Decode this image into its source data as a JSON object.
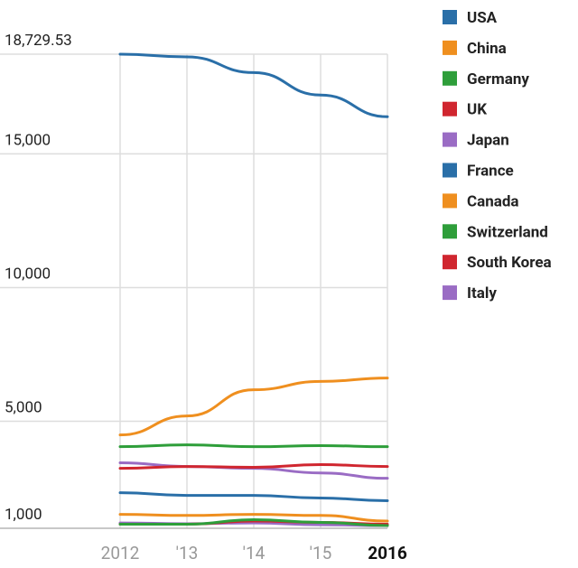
{
  "chart_data": {
    "type": "line",
    "categories": [
      "2012",
      "'13",
      "'14",
      "'15",
      "2016"
    ],
    "ylim": [
      1000,
      18729.53
    ],
    "yticks": [
      {
        "value": 1000,
        "label": "1,000"
      },
      {
        "value": 5000,
        "label": "5,000"
      },
      {
        "value": 10000,
        "label": "10,000"
      },
      {
        "value": 15000,
        "label": "15,000"
      },
      {
        "value": 18729.53,
        "label": "18,729.53"
      }
    ],
    "grid": true,
    "legend": "right",
    "series": [
      {
        "name": "USA",
        "color": "#2a6fa8",
        "values": [
          18729.53,
          18630,
          18040,
          17200,
          16390
        ]
      },
      {
        "name": "China",
        "color": "#ef8f1f",
        "values": [
          4490,
          5200,
          6180,
          6490,
          6620
        ]
      },
      {
        "name": "Germany",
        "color": "#2e9e3a",
        "values": [
          4050,
          4120,
          4050,
          4090,
          4050
        ]
      },
      {
        "name": "UK",
        "color": "#d0262f",
        "values": [
          3240,
          3310,
          3280,
          3380,
          3310
        ]
      },
      {
        "name": "Japan",
        "color": "#9a6cc4",
        "values": [
          3450,
          3310,
          3240,
          3070,
          2870
        ]
      },
      {
        "name": "France",
        "color": "#2a6fa8",
        "values": [
          2330,
          2230,
          2230,
          2130,
          2030
        ]
      },
      {
        "name": "Canada",
        "color": "#ef8f1f",
        "values": [
          1520,
          1480,
          1520,
          1480,
          1270
        ]
      },
      {
        "name": "Switzerland",
        "color": "#2e9e3a",
        "values": [
          1150,
          1150,
          1320,
          1220,
          1100
        ]
      },
      {
        "name": "South Korea",
        "color": "#d0262f",
        "values": [
          1150,
          1150,
          1270,
          1220,
          1150
        ]
      },
      {
        "name": "Italy",
        "color": "#9a6cc4",
        "values": [
          1200,
          1170,
          1200,
          1130,
          1100
        ]
      }
    ]
  }
}
